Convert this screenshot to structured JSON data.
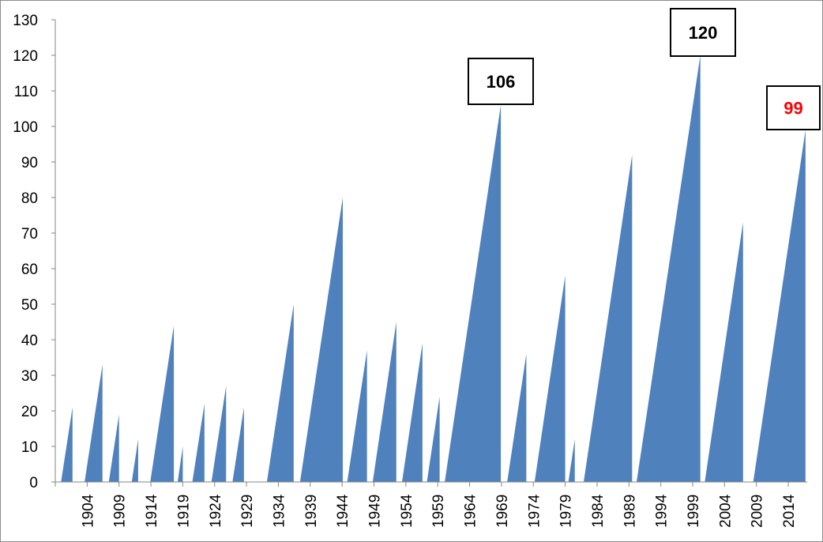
{
  "chart_data": {
    "type": "area",
    "title": "",
    "xlabel": "",
    "ylabel": "",
    "ylim": [
      0,
      130
    ],
    "yticks": [
      0,
      10,
      20,
      30,
      40,
      50,
      60,
      70,
      80,
      90,
      100,
      110,
      120,
      130
    ],
    "xticks": [
      "1904",
      "1909",
      "1914",
      "1919",
      "1924",
      "1929",
      "1934",
      "1939",
      "1944",
      "1949",
      "1954",
      "1959",
      "1964",
      "1969",
      "1974",
      "1979",
      "1984",
      "1989",
      "1994",
      "1999",
      "2004",
      "2009",
      "2014"
    ],
    "series_color": "#4F81BD",
    "series": [
      {
        "start": 1900.9,
        "end": 1902.7,
        "months": 21
      },
      {
        "start": 1904.6,
        "end": 1907.4,
        "months": 33
      },
      {
        "start": 1908.4,
        "end": 1910.0,
        "months": 19
      },
      {
        "start": 1912.0,
        "end": 1913.0,
        "months": 12
      },
      {
        "start": 1914.9,
        "end": 1918.6,
        "months": 44
      },
      {
        "start": 1919.2,
        "end": 1920.0,
        "months": 10
      },
      {
        "start": 1921.5,
        "end": 1923.4,
        "months": 22
      },
      {
        "start": 1924.5,
        "end": 1926.8,
        "months": 27
      },
      {
        "start": 1927.8,
        "end": 1929.6,
        "months": 21
      },
      {
        "start": 1933.2,
        "end": 1937.4,
        "months": 50
      },
      {
        "start": 1938.4,
        "end": 1945.1,
        "months": 80
      },
      {
        "start": 1945.8,
        "end": 1948.9,
        "months": 37
      },
      {
        "start": 1949.8,
        "end": 1953.5,
        "months": 45
      },
      {
        "start": 1954.4,
        "end": 1957.6,
        "months": 39
      },
      {
        "start": 1958.3,
        "end": 1960.3,
        "months": 24
      },
      {
        "start": 1961.1,
        "end": 1969.9,
        "months": 106
      },
      {
        "start": 1970.9,
        "end": 1973.9,
        "months": 36
      },
      {
        "start": 1975.2,
        "end": 1980.0,
        "months": 58
      },
      {
        "start": 1980.5,
        "end": 1981.5,
        "months": 12
      },
      {
        "start": 1982.9,
        "end": 1990.5,
        "months": 92
      },
      {
        "start": 1991.2,
        "end": 2001.2,
        "months": 120
      },
      {
        "start": 2001.9,
        "end": 2007.9,
        "months": 73
      },
      {
        "start": 2009.5,
        "end": 2017.7,
        "months": 99
      }
    ],
    "annotations": [
      {
        "text": "106",
        "color": "#000000",
        "series_index": 15
      },
      {
        "text": "120",
        "color": "#000000",
        "series_index": 20
      },
      {
        "text": "99",
        "color": "#FF0000",
        "series_index": 22
      }
    ]
  }
}
